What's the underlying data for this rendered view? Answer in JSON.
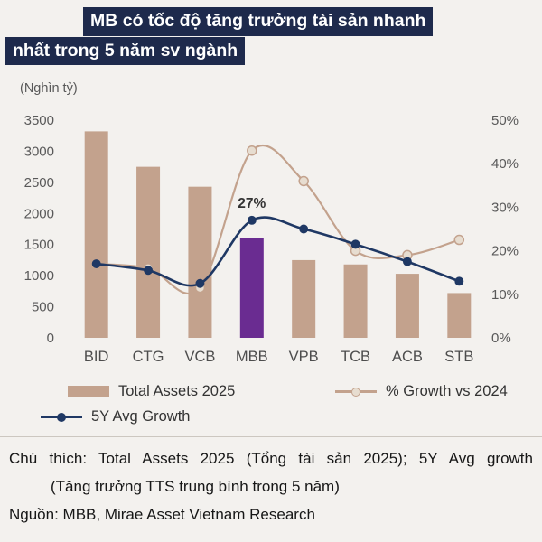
{
  "title": {
    "line1": "MB có tốc độ tăng trưởng tài sản nhanh",
    "line2": "nhất trong 5 năm sv ngành"
  },
  "colors": {
    "background": "#f3f1ee",
    "title_bg": "#1e2a4c",
    "bar_tan": "#c3a28d",
    "bar_highlight_purple": "#6a2c91",
    "navy_line": "#1f3864",
    "growth_line": "#c3a28d",
    "axis_text": "#595959"
  },
  "chart_data": {
    "type": "bar+line",
    "title": "MB có tốc độ tăng trưởng tài sản nhanh nhất trong 5 năm sv ngành",
    "unit_label": "(Nghìn tỷ)",
    "categories": [
      "BID",
      "CTG",
      "VCB",
      "MBB",
      "VPB",
      "TCB",
      "ACB",
      "STB"
    ],
    "bar_series": {
      "name": "Total Assets 2025",
      "axis": "left",
      "values": [
        3320,
        2750,
        2430,
        1600,
        1250,
        1180,
        1030,
        720
      ],
      "color": "#c3a28d",
      "highlight_index": 3,
      "highlight_color": "#6a2c91"
    },
    "line_series": [
      {
        "name": "% Growth vs 2024",
        "axis": "right",
        "values": [
          17,
          16,
          11.5,
          43,
          36,
          20,
          19,
          22.5
        ],
        "color": "#c3a28d",
        "marker_fill": "#e7ddd0"
      },
      {
        "name": "5Y Avg Growth",
        "axis": "right",
        "values": [
          17,
          15.5,
          12.5,
          27,
          25,
          21.5,
          17.5,
          13
        ],
        "color": "#1f3864",
        "marker_fill": "#1f3864"
      }
    ],
    "annotation": {
      "text": "27%",
      "category_index": 3,
      "series_index": 1
    },
    "left_axis": {
      "min": 0,
      "max": 3500,
      "step": 500,
      "ticks": [
        "0",
        "500",
        "1000",
        "1500",
        "2000",
        "2500",
        "3000",
        "3500"
      ]
    },
    "right_axis": {
      "min": 0,
      "max": 50,
      "step": 10,
      "ticks": [
        "0%",
        "10%",
        "20%",
        "30%",
        "40%",
        "50%"
      ]
    },
    "grid": false,
    "legend_position": "bottom"
  },
  "footnote": {
    "line1": "Chú thích: Total Assets 2025 (Tổng tài sản 2025); 5Y Avg growth",
    "line2": "(Tăng trưởng TTS trung bình trong 5 năm)",
    "source": "Nguồn: MBB, Mirae Asset Vietnam Research"
  }
}
